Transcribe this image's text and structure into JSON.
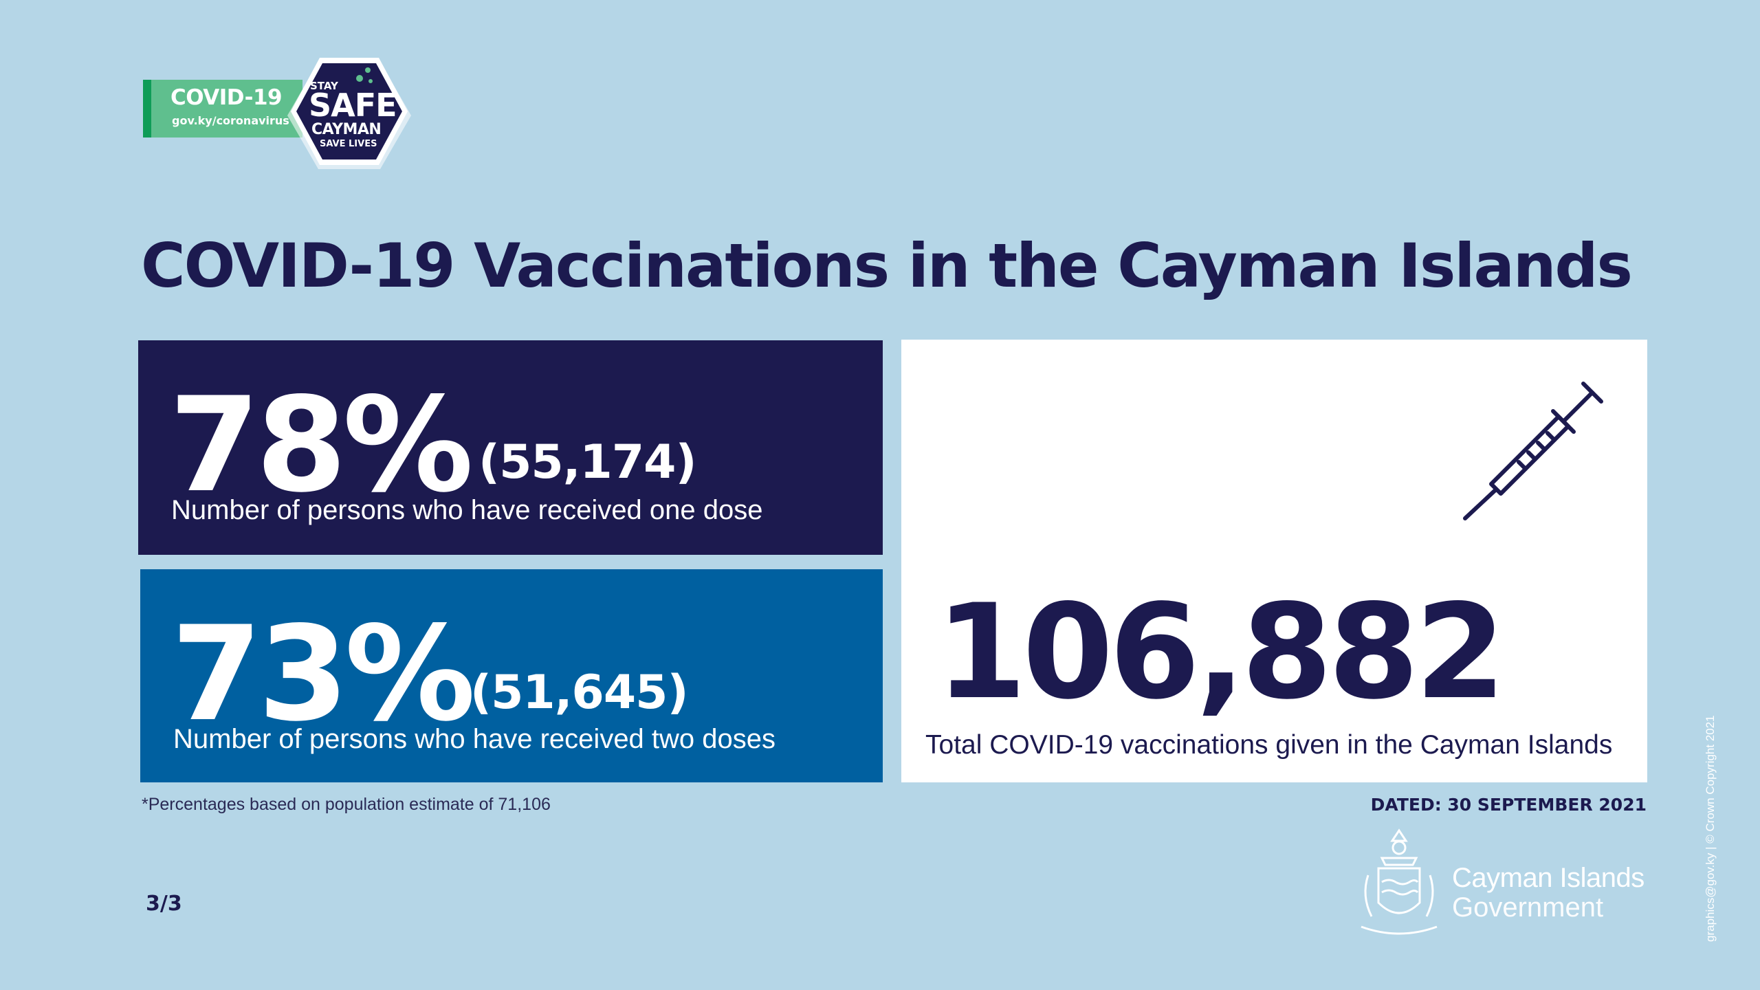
{
  "header": {
    "badge_title": "COVID-19",
    "badge_url": "gov.ky/coronavirus",
    "hex_stay": "STAY",
    "hex_safe": "SAFE",
    "hex_cayman": "CAYMAN",
    "hex_lives": "SAVE LIVES"
  },
  "title": "COVID-19 Vaccinations in the Cayman Islands",
  "stats": {
    "one_dose": {
      "percent": "78%",
      "count": "(55,174)",
      "label": "Number of persons who have received one dose"
    },
    "two_doses": {
      "percent": "73%",
      "count": "(51,645)",
      "label": "Number of persons who have received two doses"
    },
    "total": {
      "value": "106,882",
      "label": "Total COVID-19 vaccinations given in the Cayman Islands"
    }
  },
  "footnote": "*Percentages based on population estimate of 71,106",
  "dated": "DATED: 30 SEPTEMBER 2021",
  "page_number": "3/3",
  "government": {
    "name": "Cayman Islands",
    "sub": "Government"
  },
  "copyright": "graphics@gov.ky | © Crown Copyright 2021",
  "colors": {
    "background": "#b5d6e7",
    "navy": "#1c1a4f",
    "blue": "#0060a0",
    "green": "#5fbf8e"
  },
  "icons": {
    "syringe": "syringe-icon",
    "crest": "crest-icon"
  }
}
